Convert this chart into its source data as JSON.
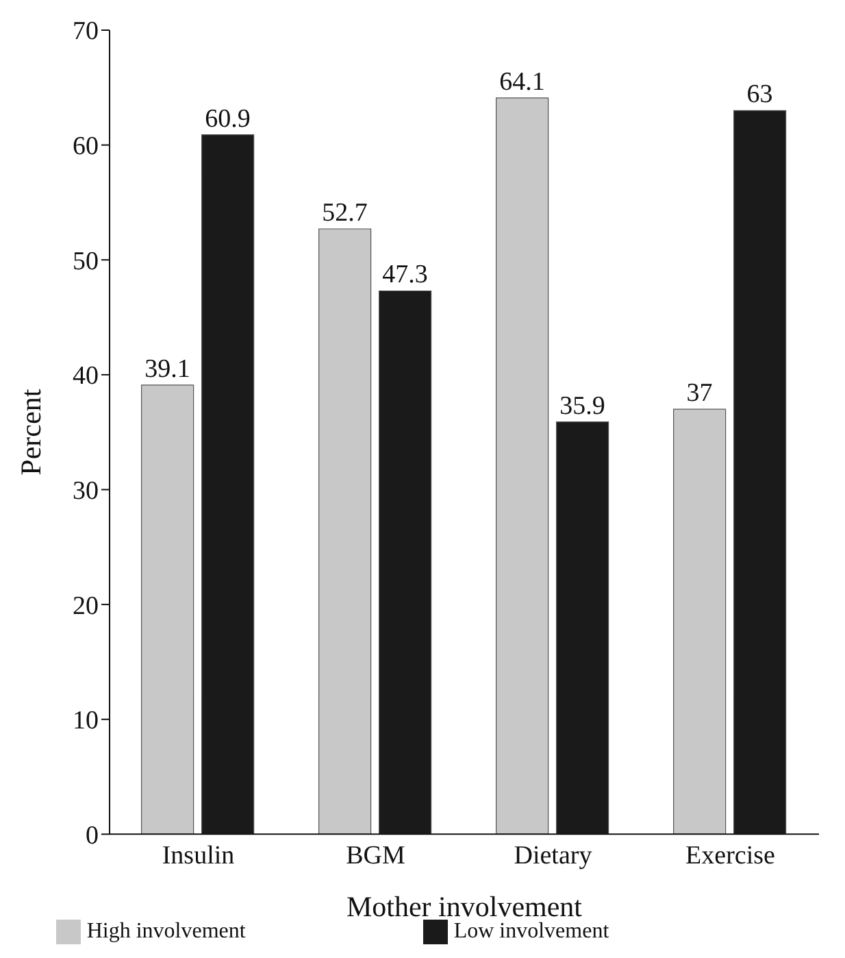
{
  "chart_data": {
    "type": "bar",
    "xlabel": "Mother involvement",
    "ylabel": "Percent",
    "categories": [
      "Insulin",
      "BGM",
      "Dietary",
      "Exercise"
    ],
    "series": [
      {
        "name": "High involvement",
        "color": "#c8c8c8",
        "values": [
          39.1,
          52.7,
          64.1,
          37
        ]
      },
      {
        "name": "Low involvement",
        "color": "#1a1a1a",
        "values": [
          60.9,
          47.3,
          35.9,
          63
        ]
      }
    ],
    "ylim": [
      0,
      70
    ],
    "yticks": [
      0,
      10,
      20,
      30,
      40,
      50,
      60,
      70
    ],
    "data_labels": true,
    "legend": "bottom",
    "grid": false
  }
}
